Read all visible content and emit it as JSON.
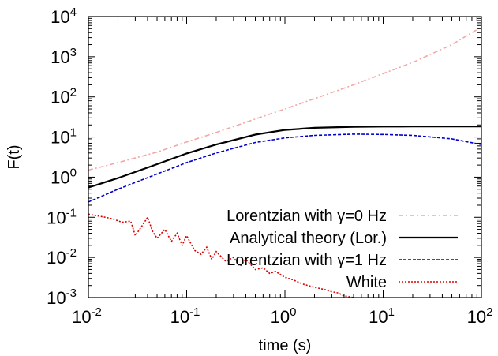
{
  "chart_data": {
    "type": "line",
    "xlabel": "time (s)",
    "ylabel": "F(t)",
    "xscale": "log",
    "yscale": "log",
    "xlim": [
      0.01,
      100
    ],
    "ylim": [
      0.001,
      10000
    ],
    "xticks": [
      {
        "base": "10",
        "exp": "-2",
        "value": 0.01
      },
      {
        "base": "10",
        "exp": "-1",
        "value": 0.1
      },
      {
        "base": "10",
        "exp": "0",
        "value": 1
      },
      {
        "base": "10",
        "exp": "1",
        "value": 10
      },
      {
        "base": "10",
        "exp": "2",
        "value": 100
      }
    ],
    "yticks": [
      {
        "base": "10",
        "exp": "-3",
        "value": 0.001
      },
      {
        "base": "10",
        "exp": "-2",
        "value": 0.01
      },
      {
        "base": "10",
        "exp": "-1",
        "value": 0.1
      },
      {
        "base": "10",
        "exp": "0",
        "value": 1
      },
      {
        "base": "10",
        "exp": "1",
        "value": 10
      },
      {
        "base": "10",
        "exp": "2",
        "value": 100
      },
      {
        "base": "10",
        "exp": "3",
        "value": 1000
      },
      {
        "base": "10",
        "exp": "4",
        "value": 10000
      }
    ],
    "legend_position": "bottom-right",
    "grid": false,
    "series": [
      {
        "name": "Lorentzian with γ=0 Hz",
        "color": "#f4a6a6",
        "style": "dash-dot",
        "x": [
          0.01,
          0.02,
          0.05,
          0.1,
          0.2,
          0.5,
          1,
          2,
          5,
          10,
          20,
          50,
          100
        ],
        "y": [
          1.5,
          2.3,
          4.2,
          7.5,
          13,
          28,
          50,
          90,
          200,
          380,
          720,
          2000,
          5500
        ]
      },
      {
        "name": "Analytical theory (Lor.)",
        "color": "#000000",
        "style": "solid",
        "x": [
          0.01,
          0.02,
          0.05,
          0.1,
          0.2,
          0.5,
          1,
          2,
          5,
          10,
          20,
          50,
          100
        ],
        "y": [
          0.55,
          0.95,
          2.1,
          3.9,
          6.5,
          11.5,
          15,
          17,
          18,
          18.2,
          18.3,
          18.3,
          18.3
        ]
      },
      {
        "name": "Lorentzian with γ=1 Hz",
        "color": "#0000cc",
        "style": "dashed",
        "x": [
          0.01,
          0.02,
          0.05,
          0.1,
          0.2,
          0.5,
          1,
          2,
          5,
          10,
          20,
          50,
          100
        ],
        "y": [
          0.24,
          0.5,
          1.2,
          2.3,
          4.0,
          7.3,
          9.5,
          11,
          11.8,
          11.6,
          11.0,
          9.0,
          6.5
        ]
      },
      {
        "name": "White",
        "color": "#dd0000",
        "style": "dotted",
        "x": [
          0.01,
          0.012,
          0.015,
          0.018,
          0.022,
          0.027,
          0.03,
          0.035,
          0.04,
          0.045,
          0.05,
          0.06,
          0.07,
          0.08,
          0.09,
          0.1,
          0.12,
          0.14,
          0.16,
          0.18,
          0.2,
          0.25,
          0.3,
          0.35,
          0.4,
          0.5,
          0.6,
          0.7,
          0.8,
          1.0,
          1.2,
          1.5,
          2.0,
          2.5,
          3.0,
          3.5,
          4.0,
          4.5,
          5.0
        ],
        "y": [
          0.12,
          0.11,
          0.1,
          0.09,
          0.075,
          0.08,
          0.035,
          0.06,
          0.1,
          0.045,
          0.03,
          0.05,
          0.025,
          0.04,
          0.02,
          0.035,
          0.015,
          0.012,
          0.018,
          0.009,
          0.014,
          0.008,
          0.01,
          0.006,
          0.009,
          0.005,
          0.0055,
          0.004,
          0.0045,
          0.0032,
          0.0028,
          0.0022,
          0.0018,
          0.0016,
          0.0014,
          0.0013,
          0.0011,
          0.00105,
          0.001
        ]
      }
    ]
  }
}
